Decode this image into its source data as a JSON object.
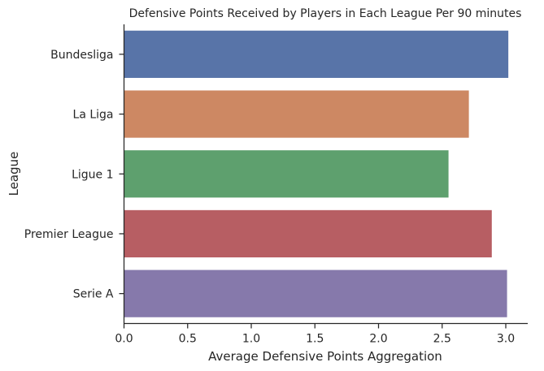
{
  "chart_data": {
    "type": "bar",
    "orientation": "horizontal",
    "title": "Defensive Points Received by Players in Each League Per 90 minutes",
    "xlabel": "Average Defensive Points Aggregation",
    "ylabel": "League",
    "categories": [
      "Bundesliga",
      "La Liga",
      "Ligue 1",
      "Premier League",
      "Serie A"
    ],
    "values": [
      3.02,
      2.71,
      2.55,
      2.89,
      3.01
    ],
    "colors": [
      "#5874a8",
      "#cd8863",
      "#5ea06e",
      "#b75e63",
      "#8679ab"
    ],
    "xlim": [
      0,
      3.15
    ],
    "xticks": [
      "0.0",
      "0.5",
      "1.0",
      "1.5",
      "2.0",
      "2.5",
      "3.0"
    ],
    "grid": false,
    "legend": "none"
  }
}
